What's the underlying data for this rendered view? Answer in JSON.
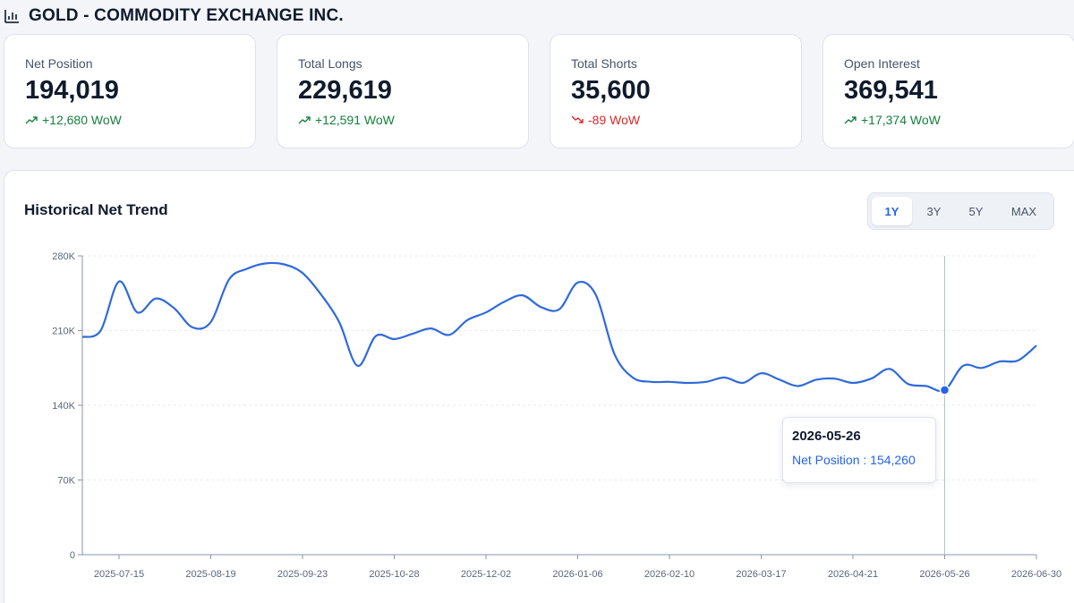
{
  "header": {
    "title": "GOLD - COMMODITY EXCHANGE INC.",
    "icon": "bar-chart-icon"
  },
  "cards": [
    {
      "label": "Net Position",
      "value": "194,019",
      "change": "+12,680 WoW",
      "direction": "up"
    },
    {
      "label": "Total Longs",
      "value": "229,619",
      "change": "+12,591 WoW",
      "direction": "up"
    },
    {
      "label": "Total Shorts",
      "value": "35,600",
      "change": "-89 WoW",
      "direction": "down"
    },
    {
      "label": "Open Interest",
      "value": "369,541",
      "change": "+17,374 WoW",
      "direction": "up"
    }
  ],
  "colors": {
    "up": "#15803d",
    "down": "#dc2626",
    "accent": "#2563eb",
    "line": "#2f6ad9"
  },
  "chart": {
    "title": "Historical Net Trend",
    "ranges": [
      "1Y",
      "3Y",
      "5Y",
      "MAX"
    ],
    "active_range": "1Y",
    "tooltip": {
      "date": "2026-05-26",
      "series_label": "Net Position : 154,260"
    }
  },
  "chart_data": {
    "type": "line",
    "title": "",
    "xlabel": "",
    "ylabel": "",
    "ylim": [
      0,
      280000
    ],
    "y_ticks": [
      "0",
      "70K",
      "140K",
      "210K",
      "280K"
    ],
    "y_tick_values": [
      0,
      70000,
      140000,
      210000,
      280000
    ],
    "x_ticks": [
      "2025-07-15",
      "2025-08-19",
      "2025-09-23",
      "2025-10-28",
      "2025-12-02",
      "2026-01-06",
      "2026-02-10",
      "2026-03-17",
      "2026-04-21",
      "2026-05-26",
      "2026-06-30"
    ],
    "x_range": [
      "2025-07-01",
      "2026-06-30"
    ],
    "grid": "horizontal-dashed",
    "series": [
      {
        "name": "Net Position",
        "points": [
          [
            "2025-07-01",
            204000
          ],
          [
            "2025-07-08",
            210000
          ],
          [
            "2025-07-15",
            256000
          ],
          [
            "2025-07-22",
            227000
          ],
          [
            "2025-07-29",
            240000
          ],
          [
            "2025-08-05",
            231000
          ],
          [
            "2025-08-12",
            213000
          ],
          [
            "2025-08-19",
            218000
          ],
          [
            "2025-08-26",
            258000
          ],
          [
            "2025-09-02",
            268000
          ],
          [
            "2025-09-09",
            273000
          ],
          [
            "2025-09-16",
            272000
          ],
          [
            "2025-09-23",
            264000
          ],
          [
            "2025-09-30",
            244000
          ],
          [
            "2025-10-07",
            218000
          ],
          [
            "2025-10-14",
            177000
          ],
          [
            "2025-10-21",
            205000
          ],
          [
            "2025-10-28",
            202000
          ],
          [
            "2025-11-04",
            207000
          ],
          [
            "2025-11-11",
            212000
          ],
          [
            "2025-11-18",
            206000
          ],
          [
            "2025-11-25",
            220000
          ],
          [
            "2025-12-02",
            227000
          ],
          [
            "2025-12-09",
            237000
          ],
          [
            "2025-12-16",
            243000
          ],
          [
            "2025-12-23",
            232000
          ],
          [
            "2025-12-30",
            230000
          ],
          [
            "2026-01-06",
            255000
          ],
          [
            "2026-01-13",
            243000
          ],
          [
            "2026-01-20",
            188000
          ],
          [
            "2026-01-27",
            166000
          ],
          [
            "2026-02-03",
            162000
          ],
          [
            "2026-02-10",
            162000
          ],
          [
            "2026-02-17",
            161000
          ],
          [
            "2026-02-24",
            162000
          ],
          [
            "2026-03-03",
            166000
          ],
          [
            "2026-03-10",
            161000
          ],
          [
            "2026-03-17",
            170000
          ],
          [
            "2026-03-24",
            164000
          ],
          [
            "2026-03-31",
            158000
          ],
          [
            "2026-04-07",
            164000
          ],
          [
            "2026-04-14",
            165000
          ],
          [
            "2026-04-21",
            161000
          ],
          [
            "2026-04-28",
            165000
          ],
          [
            "2026-05-05",
            174000
          ],
          [
            "2026-05-12",
            160000
          ],
          [
            "2026-05-19",
            158000
          ],
          [
            "2026-05-26",
            154260
          ],
          [
            "2026-06-02",
            177000
          ],
          [
            "2026-06-09",
            175000
          ],
          [
            "2026-06-16",
            181000
          ],
          [
            "2026-06-23",
            182000
          ],
          [
            "2026-06-30",
            196000
          ]
        ]
      }
    ],
    "highlight": {
      "x": "2026-05-26",
      "y": 154260
    }
  }
}
